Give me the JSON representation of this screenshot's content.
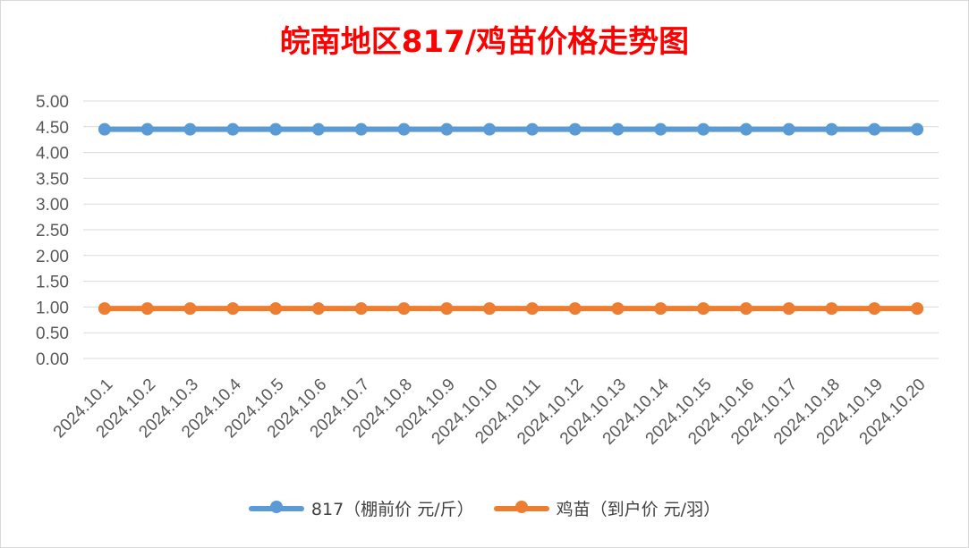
{
  "chart_data": {
    "type": "line",
    "title": "皖南地区817/鸡苗价格走势图",
    "categories": [
      "2024.10.1",
      "2024.10.2",
      "2024.10.3",
      "2024.10.4",
      "2024.10.5",
      "2024.10.6",
      "2024.10.7",
      "2024.10.8",
      "2024.10.9",
      "2024.10.10",
      "2024.10.11",
      "2024.10.12",
      "2024.10.13",
      "2024.10.14",
      "2024.10.15",
      "2024.10.16",
      "2024.10.17",
      "2024.10.18",
      "2024.10.19",
      "2024.10.20"
    ],
    "series": [
      {
        "name": "817（棚前价 元/斤）",
        "color": "#5b9bd5",
        "values": [
          4.45,
          4.45,
          4.45,
          4.45,
          4.45,
          4.45,
          4.45,
          4.45,
          4.45,
          4.45,
          4.45,
          4.45,
          4.45,
          4.45,
          4.45,
          4.45,
          4.45,
          4.45,
          4.45,
          4.45
        ]
      },
      {
        "name": "鸡苗（到户价 元/羽）",
        "color": "#ed7d31",
        "values": [
          0.97,
          0.97,
          0.97,
          0.97,
          0.97,
          0.97,
          0.97,
          0.97,
          0.97,
          0.97,
          0.97,
          0.97,
          0.97,
          0.97,
          0.97,
          0.97,
          0.97,
          0.97,
          0.97,
          0.97
        ]
      }
    ],
    "yticks": [
      "0.00",
      "0.50",
      "1.00",
      "1.50",
      "2.00",
      "2.50",
      "3.00",
      "3.50",
      "4.00",
      "4.50",
      "5.00"
    ],
    "ylim": [
      0,
      5
    ],
    "grid": true,
    "legend_position": "bottom"
  }
}
